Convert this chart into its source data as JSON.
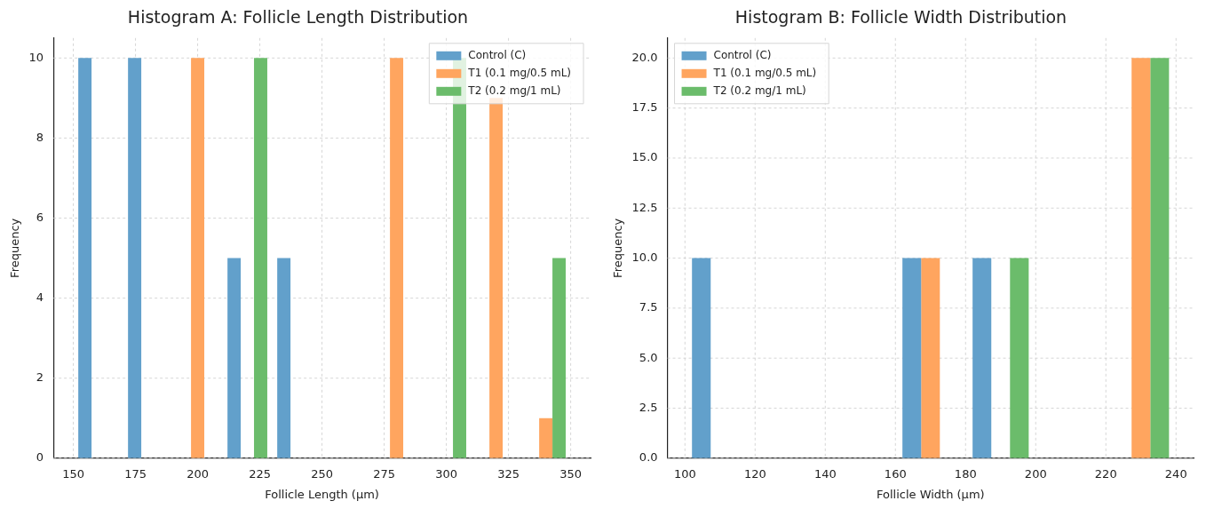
{
  "chart_data": [
    {
      "type": "histogram",
      "title": "Histogram A: Follicle Length Distribution",
      "xlabel": "Follicle Length (µm)",
      "ylabel": "Frequency",
      "bins": [
        150,
        170,
        190,
        210,
        230,
        250,
        270,
        290,
        310,
        330,
        350
      ],
      "series": [
        {
          "name": "Control (C)",
          "color": "#62a0cb",
          "values": [
            10,
            10,
            0,
            5,
            5,
            0,
            0,
            0,
            0,
            0
          ]
        },
        {
          "name": "T1 (0.1 mg/0.5 mL)",
          "color": "#ffa55f",
          "values": [
            0,
            0,
            10,
            0,
            0,
            0,
            10,
            0,
            9,
            1
          ]
        },
        {
          "name": "T2 (0.2 mg/1 mL)",
          "color": "#6bbc6b",
          "values": [
            0,
            0,
            0,
            10,
            0,
            0,
            0,
            10,
            0,
            5
          ]
        }
      ],
      "xlim": [
        142,
        358
      ],
      "xticks": [
        150,
        175,
        200,
        225,
        250,
        275,
        300,
        325,
        350
      ],
      "ylim": [
        0,
        10.5
      ],
      "yticks": [
        0,
        2,
        4,
        6,
        8,
        10
      ],
      "grid": true,
      "legend": "top right"
    },
    {
      "type": "histogram",
      "title": "Histogram B: Follicle Width Distribution",
      "xlabel": "Follicle Width (µm)",
      "ylabel": "Frequency",
      "bins": [
        100,
        120,
        140,
        160,
        180,
        200,
        220,
        240
      ],
      "series": [
        {
          "name": "Control (C)",
          "color": "#62a0cb",
          "values": [
            10,
            0,
            0,
            10,
            10,
            0,
            0
          ]
        },
        {
          "name": "T1 (0.1 mg/0.5 mL)",
          "color": "#ffa55f",
          "values": [
            0,
            0,
            0,
            10,
            0,
            0,
            20
          ]
        },
        {
          "name": "T2 (0.2 mg/1 mL)",
          "color": "#6bbc6b",
          "values": [
            0,
            0,
            0,
            0,
            10,
            0,
            20
          ]
        }
      ],
      "xlim": [
        95,
        245
      ],
      "xticks": [
        100,
        120,
        140,
        160,
        180,
        200,
        220,
        240
      ],
      "ylim": [
        0,
        21
      ],
      "yticks": [
        {
          "value": 0,
          "label": "0.0"
        },
        {
          "value": 2.5,
          "label": "2.5"
        },
        {
          "value": 5,
          "label": "5.0"
        },
        {
          "value": 7.5,
          "label": "7.5"
        },
        {
          "value": 10,
          "label": "10.0"
        },
        {
          "value": 12.5,
          "label": "12.5"
        },
        {
          "value": 15,
          "label": "15.0"
        },
        {
          "value": 17.5,
          "label": "17.5"
        },
        {
          "value": 20,
          "label": "20.0"
        }
      ],
      "grid": true,
      "legend": "top left"
    }
  ]
}
